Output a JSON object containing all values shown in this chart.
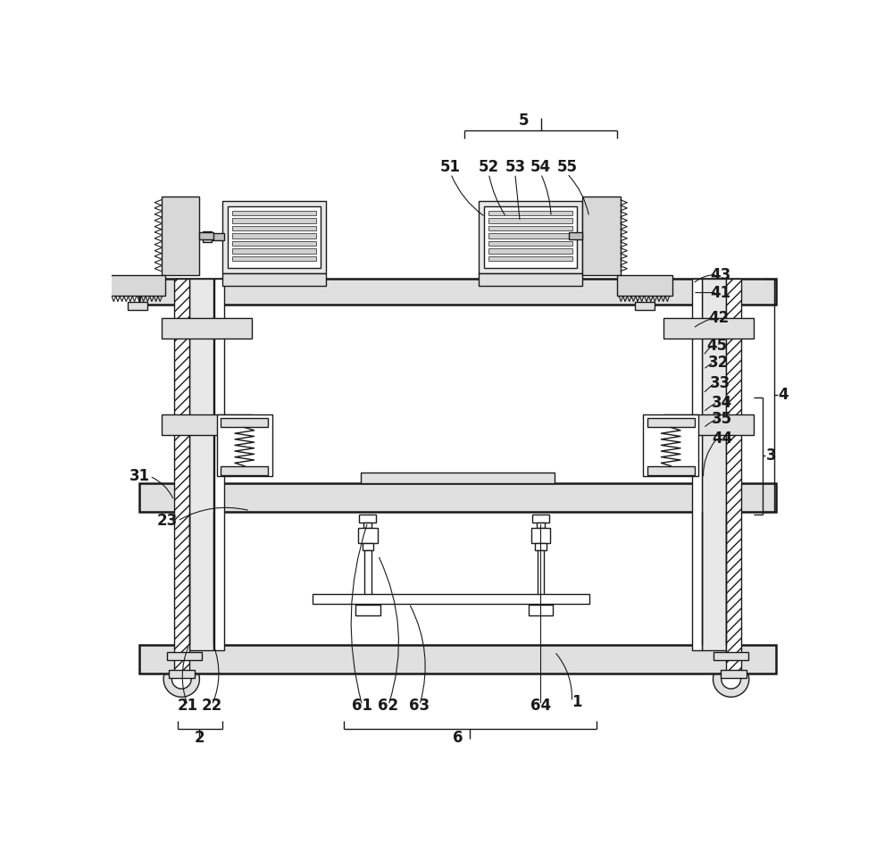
{
  "bg_color": "#ffffff",
  "lc": "#1a1a1a",
  "lw": 1.0,
  "tlw": 1.8,
  "fig_w": 10.0,
  "fig_h": 9.46
}
